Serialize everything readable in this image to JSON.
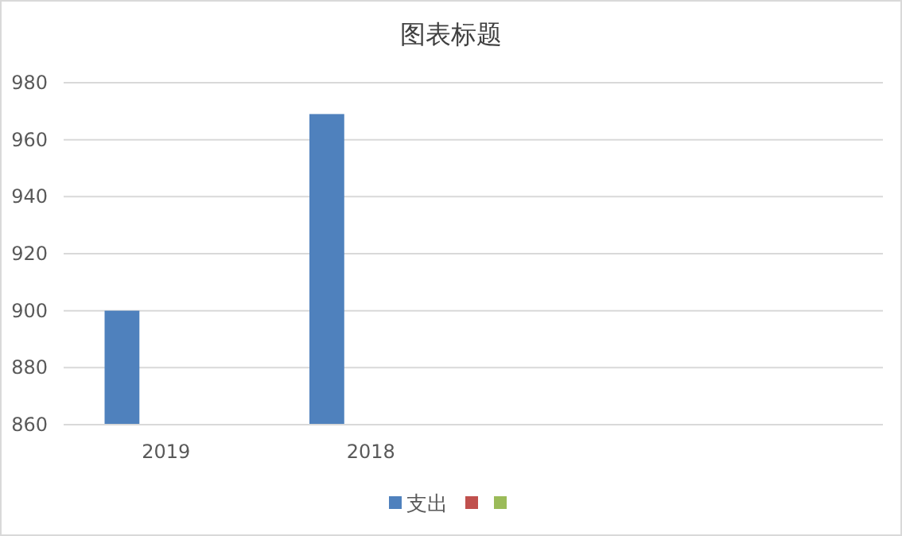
{
  "chart_data": {
    "type": "bar",
    "title": "图表标题",
    "categories": [
      "2019",
      "2018",
      null,
      null
    ],
    "series": [
      {
        "name": "支出",
        "color": "#4f81bd",
        "values": [
          900,
          969,
          null,
          null
        ]
      },
      {
        "color": "#c0504d",
        "values": [
          null,
          null,
          null,
          null
        ]
      },
      {
        "color": "#9bbb59",
        "values": [
          null,
          null,
          null,
          null
        ]
      }
    ],
    "ylim": [
      860,
      980
    ],
    "yticks": [
      860,
      880,
      900,
      920,
      940,
      960,
      980
    ],
    "grid": "y",
    "legend": "bottom"
  }
}
